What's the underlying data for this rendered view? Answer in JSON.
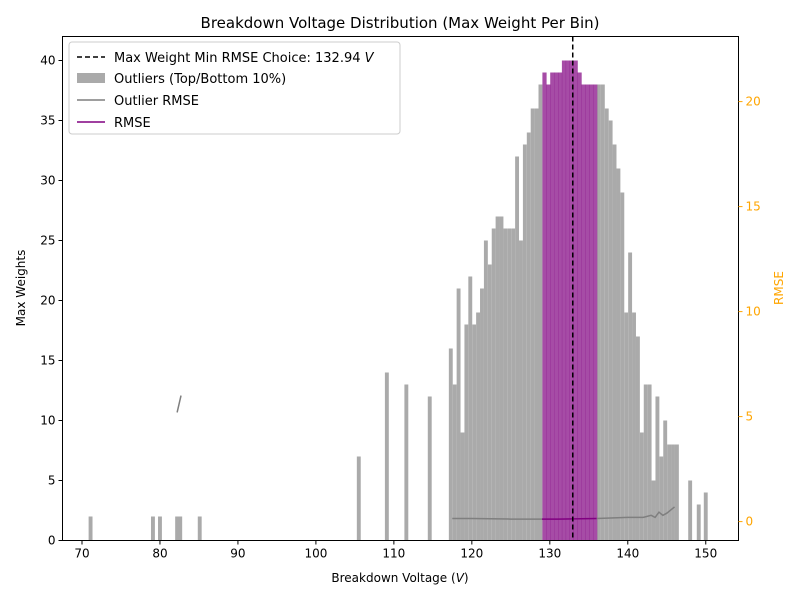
{
  "chart_data": {
    "type": "bar",
    "title": "Breakdown Voltage Distribution (Max Weight Per Bin)",
    "xlabel": "Breakdown Voltage (",
    "xlabel_var": "V",
    "xlabel_close": ")",
    "ylabel": "Max Weights",
    "y2label": "RMSE",
    "xlim": [
      67.5,
      154.2
    ],
    "ylim": [
      0,
      42
    ],
    "y2lim": [
      -0.9,
      23.1
    ],
    "xticks": [
      70,
      80,
      90,
      100,
      110,
      120,
      130,
      140,
      150
    ],
    "yticks": [
      0,
      5,
      10,
      15,
      20,
      25,
      30,
      35,
      40
    ],
    "y2ticks": [
      0,
      5,
      10,
      15,
      20
    ],
    "bin_width": 0.5,
    "outlier_color": "#aaaaaa",
    "inlier_color": "#800080",
    "rmse_color": "#800080",
    "outlier_rmse_color": "#7f7f7f",
    "y2_color": "#ffa500",
    "vline_x": 132.94,
    "legend": {
      "placement": "upper-left",
      "vline_prefix": "Max Weight Min RMSE Choice: 132.94 ",
      "vline_unit": "V",
      "outliers": "Outliers (Top/Bottom 10%)",
      "outlier_rmse": "Outlier RMSE",
      "rmse": "RMSE"
    },
    "outliers": [
      [
        71.1,
        2
      ],
      [
        79.1,
        2
      ],
      [
        80.0,
        2
      ],
      [
        82.2,
        2
      ],
      [
        82.6,
        2
      ],
      [
        85.1,
        2
      ],
      [
        105.5,
        7
      ],
      [
        109.1,
        14
      ],
      [
        111.6,
        13
      ],
      [
        114.6,
        12
      ],
      [
        117.3,
        16
      ],
      [
        117.8,
        13
      ],
      [
        118.3,
        21
      ],
      [
        118.8,
        9
      ],
      [
        119.3,
        18
      ],
      [
        119.8,
        22
      ],
      [
        120.3,
        18
      ],
      [
        120.8,
        19
      ],
      [
        121.3,
        21
      ],
      [
        121.8,
        25
      ],
      [
        122.3,
        23
      ],
      [
        122.8,
        26
      ],
      [
        123.3,
        27
      ],
      [
        123.8,
        27
      ],
      [
        124.3,
        26
      ],
      [
        124.8,
        26
      ],
      [
        125.3,
        26
      ],
      [
        125.8,
        32
      ],
      [
        126.3,
        25
      ],
      [
        126.8,
        33
      ],
      [
        127.3,
        34
      ],
      [
        127.8,
        36
      ],
      [
        128.3,
        36
      ],
      [
        128.8,
        38
      ],
      [
        136.3,
        38
      ],
      [
        136.8,
        38
      ],
      [
        137.3,
        36
      ],
      [
        137.8,
        35
      ],
      [
        138.3,
        33
      ],
      [
        138.8,
        31
      ],
      [
        139.3,
        29
      ],
      [
        139.8,
        19
      ],
      [
        140.3,
        24
      ],
      [
        140.8,
        19
      ],
      [
        141.3,
        17
      ],
      [
        141.8,
        9
      ],
      [
        142.3,
        13
      ],
      [
        142.8,
        13
      ],
      [
        143.3,
        5
      ],
      [
        143.8,
        12
      ],
      [
        144.3,
        7
      ],
      [
        144.8,
        10
      ],
      [
        145.3,
        8
      ],
      [
        145.8,
        8
      ],
      [
        146.3,
        8
      ],
      [
        148.0,
        5
      ],
      [
        149.1,
        3
      ],
      [
        150.0,
        4
      ]
    ],
    "inliers": [
      [
        129.3,
        39
      ],
      [
        129.8,
        38
      ],
      [
        130.3,
        39
      ],
      [
        130.8,
        39
      ],
      [
        131.3,
        39
      ],
      [
        131.8,
        40
      ],
      [
        132.3,
        40
      ],
      [
        132.8,
        40
      ],
      [
        133.3,
        40
      ],
      [
        133.8,
        39
      ],
      [
        134.3,
        38
      ],
      [
        134.8,
        38
      ],
      [
        135.3,
        38
      ],
      [
        135.8,
        38
      ]
    ],
    "outlier_rmse_lines": [
      [
        [
          82.2,
          5.2
        ],
        [
          82.7,
          6.0
        ]
      ],
      [
        [
          117.5,
          0.15
        ],
        [
          120,
          0.15
        ],
        [
          125,
          0.12
        ],
        [
          129,
          0.12
        ]
      ],
      [
        [
          136,
          0.15
        ],
        [
          140,
          0.2
        ],
        [
          142,
          0.2
        ],
        [
          143,
          0.3
        ],
        [
          143.5,
          0.2
        ],
        [
          144,
          0.45
        ],
        [
          144.5,
          0.3
        ],
        [
          145,
          0.4
        ],
        [
          145.5,
          0.55
        ],
        [
          146,
          0.7
        ]
      ]
    ],
    "rmse_line": [
      [
        129,
        0.12
      ],
      [
        131,
        0.12
      ],
      [
        133,
        0.13
      ],
      [
        135,
        0.14
      ],
      [
        136,
        0.15
      ]
    ]
  }
}
